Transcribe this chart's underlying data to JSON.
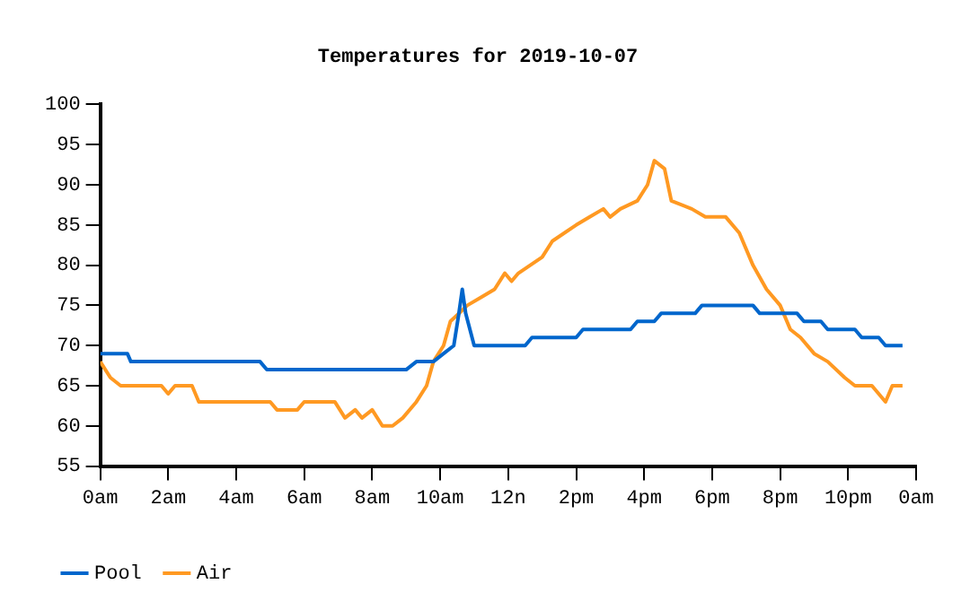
{
  "chart_data": {
    "type": "line",
    "title": "Temperatures for 2019-10-07",
    "xlim": [
      "2019-10-07T00:00",
      "2019-10-08T00:00"
    ],
    "xticks": [
      {
        "value": "2019-10-07T00:00",
        "label": "0am"
      },
      {
        "value": "2019-10-07T02:00",
        "label": "2am"
      },
      {
        "value": "2019-10-07T04:00",
        "label": "4am"
      },
      {
        "value": "2019-10-07T06:00",
        "label": "6am"
      },
      {
        "value": "2019-10-07T08:00",
        "label": "8am"
      },
      {
        "value": "2019-10-07T10:00",
        "label": "10am"
      },
      {
        "value": "2019-10-07T12:00",
        "label": "12n"
      },
      {
        "value": "2019-10-07T14:00",
        "label": "2pm"
      },
      {
        "value": "2019-10-07T16:00",
        "label": "4pm"
      },
      {
        "value": "2019-10-07T18:00",
        "label": "6pm"
      },
      {
        "value": "2019-10-07T20:00",
        "label": "8pm"
      },
      {
        "value": "2019-10-07T22:00",
        "label": "10pm"
      },
      {
        "value": "2019-10-08T00:00",
        "label": "0am"
      }
    ],
    "ylim": [
      55,
      100
    ],
    "yticks": [
      55,
      60,
      65,
      70,
      75,
      80,
      85,
      90,
      95,
      100
    ],
    "grid": false,
    "legend": "bottom left",
    "marker": "none",
    "line_style": "solid",
    "series": [
      {
        "name": "Pool",
        "color": "#0066cc",
        "x": [
          "2019-10-07T00:00",
          "2019-10-07T00:48",
          "2019-10-07T00:54",
          "2019-10-07T04:42",
          "2019-10-07T04:54",
          "2019-10-07T09:00",
          "2019-10-07T09:18",
          "2019-10-07T09:48",
          "2019-10-07T10:06",
          "2019-10-07T10:24",
          "2019-10-07T10:33",
          "2019-10-07T10:39",
          "2019-10-07T10:45",
          "2019-10-07T11:00",
          "2019-10-07T12:30",
          "2019-10-07T12:42",
          "2019-10-07T14:00",
          "2019-10-07T14:12",
          "2019-10-07T15:36",
          "2019-10-07T15:48",
          "2019-10-07T16:18",
          "2019-10-07T16:30",
          "2019-10-07T17:30",
          "2019-10-07T17:42",
          "2019-10-07T19:12",
          "2019-10-07T19:24",
          "2019-10-07T20:30",
          "2019-10-07T20:42",
          "2019-10-07T21:12",
          "2019-10-07T21:24",
          "2019-10-07T22:12",
          "2019-10-07T22:24",
          "2019-10-07T22:54",
          "2019-10-07T23:06",
          "2019-10-07T23:36"
        ],
        "values": [
          69,
          69,
          68,
          68,
          67,
          67,
          68,
          68,
          69,
          70,
          74,
          77,
          74,
          70,
          70,
          71,
          71,
          72,
          72,
          73,
          73,
          74,
          74,
          75,
          75,
          74,
          74,
          73,
          73,
          72,
          72,
          71,
          71,
          70,
          70
        ]
      },
      {
        "name": "Air",
        "color": "#ff9922",
        "x": [
          "2019-10-07T00:00",
          "2019-10-07T00:18",
          "2019-10-07T00:36",
          "2019-10-07T01:48",
          "2019-10-07T02:00",
          "2019-10-07T02:12",
          "2019-10-07T02:42",
          "2019-10-07T02:54",
          "2019-10-07T05:00",
          "2019-10-07T05:12",
          "2019-10-07T05:48",
          "2019-10-07T06:00",
          "2019-10-07T06:54",
          "2019-10-07T07:12",
          "2019-10-07T07:30",
          "2019-10-07T07:42",
          "2019-10-07T08:00",
          "2019-10-07T08:18",
          "2019-10-07T08:36",
          "2019-10-07T08:54",
          "2019-10-07T09:18",
          "2019-10-07T09:36",
          "2019-10-07T09:48",
          "2019-10-07T10:06",
          "2019-10-07T10:18",
          "2019-10-07T10:48",
          "2019-10-07T11:12",
          "2019-10-07T11:36",
          "2019-10-07T11:54",
          "2019-10-07T12:06",
          "2019-10-07T12:18",
          "2019-10-07T13:00",
          "2019-10-07T13:18",
          "2019-10-07T14:00",
          "2019-10-07T14:24",
          "2019-10-07T14:48",
          "2019-10-07T15:00",
          "2019-10-07T15:18",
          "2019-10-07T15:48",
          "2019-10-07T16:06",
          "2019-10-07T16:18",
          "2019-10-07T16:36",
          "2019-10-07T16:48",
          "2019-10-07T17:24",
          "2019-10-07T17:48",
          "2019-10-07T18:24",
          "2019-10-07T18:48",
          "2019-10-07T19:12",
          "2019-10-07T19:36",
          "2019-10-07T20:00",
          "2019-10-07T20:18",
          "2019-10-07T20:36",
          "2019-10-07T21:00",
          "2019-10-07T21:24",
          "2019-10-07T21:54",
          "2019-10-07T22:12",
          "2019-10-07T22:42",
          "2019-10-07T23:06",
          "2019-10-07T23:18",
          "2019-10-07T23:36"
        ],
        "values": [
          68,
          66,
          65,
          65,
          64,
          65,
          65,
          63,
          63,
          62,
          62,
          63,
          63,
          61,
          62,
          61,
          62,
          60,
          60,
          61,
          63,
          65,
          68,
          70,
          73,
          75,
          76,
          77,
          79,
          78,
          79,
          81,
          83,
          85,
          86,
          87,
          86,
          87,
          88,
          90,
          93,
          92,
          88,
          87,
          86,
          86,
          84,
          80,
          77,
          75,
          72,
          71,
          69,
          68,
          66,
          65,
          65,
          63,
          65,
          65
        ]
      }
    ]
  }
}
